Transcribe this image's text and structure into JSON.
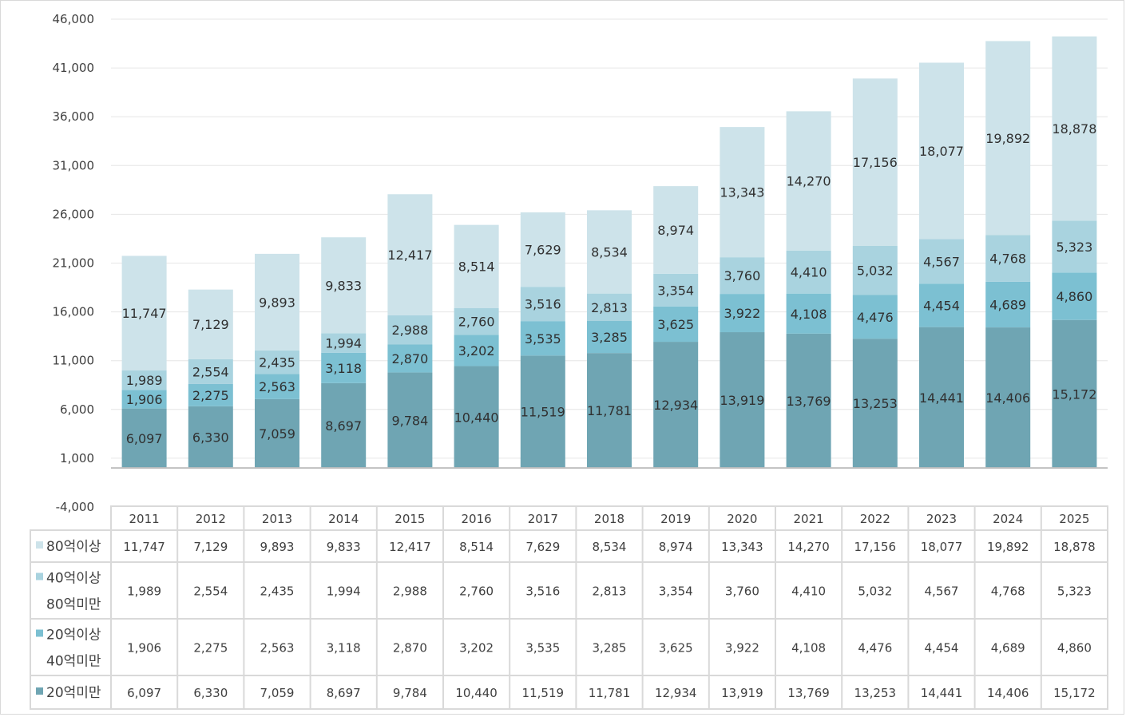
{
  "chart_data": {
    "type": "bar",
    "stacked": true,
    "categories": [
      "2011",
      "2012",
      "2013",
      "2014",
      "2015",
      "2016",
      "2017",
      "2018",
      "2019",
      "2020",
      "2021",
      "2022",
      "2023",
      "2024",
      "2025"
    ],
    "series": [
      {
        "name": "20억미만",
        "label_lines": [
          "20억미만"
        ],
        "color": "#6fa5b3",
        "values": [
          6097,
          6330,
          7059,
          8697,
          9784,
          10440,
          11519,
          11781,
          12934,
          13919,
          13769,
          13253,
          14441,
          14406,
          15172
        ],
        "labels": [
          "6,097",
          "6,330",
          "7,059",
          "8,697",
          "9,784",
          "10,440",
          "11,519",
          "11,781",
          "12,934",
          "13,919",
          "13,769",
          "13,253",
          "14,441",
          "14,406",
          "15,172"
        ]
      },
      {
        "name": "20억이상 40억미만",
        "label_lines": [
          "20억이상",
          "40억미만"
        ],
        "color": "#7cc0d2",
        "values": [
          1906,
          2275,
          2563,
          3118,
          2870,
          3202,
          3535,
          3285,
          3625,
          3922,
          4108,
          4476,
          4454,
          4689,
          4860
        ],
        "labels": [
          "1,906",
          "2,275",
          "2,563",
          "3,118",
          "2,870",
          "3,202",
          "3,535",
          "3,285",
          "3,625",
          "3,922",
          "4,108",
          "4,476",
          "4,454",
          "4,689",
          "4,860"
        ]
      },
      {
        "name": "40억이상 80억미만",
        "label_lines": [
          "40억이상",
          "80억미만"
        ],
        "color": "#a9d3df",
        "values": [
          1989,
          2554,
          2435,
          1994,
          2988,
          2760,
          3516,
          2813,
          3354,
          3760,
          4410,
          5032,
          4567,
          4768,
          5323
        ],
        "labels": [
          "1,989",
          "2,554",
          "2,435",
          "1,994",
          "2,988",
          "2,760",
          "3,516",
          "2,813",
          "3,354",
          "3,760",
          "4,410",
          "5,032",
          "4,567",
          "4,768",
          "5,323"
        ]
      },
      {
        "name": "80억이상",
        "label_lines": [
          "80억이상"
        ],
        "color": "#cde3ea",
        "values": [
          11747,
          7129,
          9893,
          9833,
          12417,
          8514,
          7629,
          8534,
          8974,
          13343,
          14270,
          17156,
          18077,
          19892,
          18878
        ],
        "labels": [
          "11,747",
          "7,129",
          "9,893",
          "9,833",
          "12,417",
          "8,514",
          "7,629",
          "8,534",
          "8,974",
          "13,343",
          "14,270",
          "17,156",
          "18,077",
          "19,892",
          "18,878"
        ]
      }
    ],
    "table_order": [
      3,
      2,
      1,
      0
    ],
    "yticks": [
      "46,000",
      "41,000",
      "36,000",
      "31,000",
      "26,000",
      "21,000",
      "16,000",
      "11,000",
      "6,000",
      "1,000",
      "-4,000"
    ],
    "ylim": [
      -4000,
      46000
    ],
    "base": 0,
    "grid": true,
    "legend": "data-table",
    "title": "",
    "xlabel": "",
    "ylabel": ""
  }
}
